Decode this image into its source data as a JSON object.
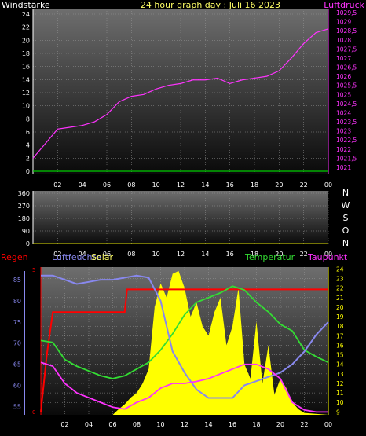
{
  "header": {
    "left_label": "Windstärke",
    "center_label": "24 hour graph day : Juli 16 2023",
    "right_label": "Luftdruck"
  },
  "labels": {
    "regen": "Regen",
    "luftfeuchte": "Luftfeuchte",
    "solar": "Solar",
    "temperatur": "Temperatur",
    "taupunkt": "Taupunkt"
  },
  "colors": {
    "pressure": "#ff33ff",
    "wind": "#00cc00",
    "humidity": "#8888ee",
    "temperature": "#33dd33",
    "dewpoint": "#ff33ff",
    "rain": "#ff0000",
    "solar": "#ffff00",
    "header_center": "#ffff66"
  },
  "chart_data": [
    {
      "type": "line",
      "panel": "wind-pressure",
      "x_ticks": [
        "02",
        "04",
        "06",
        "08",
        "10",
        "12",
        "14",
        "16",
        "18",
        "20",
        "22",
        "00"
      ],
      "y_left_ticks": [
        "0",
        "2",
        "4",
        "6",
        "8",
        "10",
        "12",
        "14",
        "16",
        "18",
        "20",
        "22",
        "24"
      ],
      "y_left_range": [
        0,
        24
      ],
      "y_right_ticks": [
        "1021",
        "1021,5",
        "1022",
        "1022,5",
        "1023",
        "1023,5",
        "1024",
        "1024,5",
        "1025",
        "1025,5",
        "1026",
        "1026,5",
        "1027",
        "1027,5",
        "1028",
        "1028,5",
        "1029",
        "1029,5"
      ],
      "y_right_range": [
        1021,
        1029.5
      ],
      "series": [
        {
          "name": "Luftdruck",
          "axis": "right",
          "x": [
            0,
            0.5,
            1,
            1.5,
            2,
            3,
            4,
            5,
            6,
            7,
            8,
            9,
            10,
            11,
            12,
            13,
            14,
            15,
            16,
            17,
            18,
            19,
            20,
            21,
            22,
            23,
            24
          ],
          "y": [
            1021.5,
            1021.9,
            1022.3,
            1022.7,
            1023.1,
            1023.2,
            1023.3,
            1023.5,
            1023.9,
            1024.6,
            1024.9,
            1025.0,
            1025.3,
            1025.5,
            1025.6,
            1025.8,
            1025.8,
            1025.9,
            1025.6,
            1025.8,
            1025.9,
            1026.0,
            1026.3,
            1027.0,
            1027.8,
            1028.4,
            1028.6
          ]
        },
        {
          "name": "Windstärke",
          "axis": "left",
          "x": [
            0,
            24
          ],
          "y": [
            0,
            0
          ]
        }
      ]
    },
    {
      "type": "line",
      "panel": "wind-direction",
      "x_ticks": [
        "02",
        "04",
        "06",
        "08",
        "10",
        "12",
        "14",
        "16",
        "18",
        "20",
        "22",
        "00"
      ],
      "y_left_ticks": [
        "0",
        "90",
        "180",
        "270",
        "360"
      ],
      "y_left_range": [
        0,
        360
      ],
      "y_right_ticks": [
        "N",
        "W",
        "S",
        "O",
        "N"
      ],
      "series": []
    },
    {
      "type": "line",
      "panel": "weather",
      "x_ticks": [
        "02",
        "04",
        "06",
        "08",
        "10",
        "12",
        "14",
        "16",
        "18",
        "20",
        "22",
        "00"
      ],
      "y_humidity_ticks": [
        "55",
        "60",
        "65",
        "70",
        "75",
        "80",
        "85"
      ],
      "y_humidity_range": [
        53,
        88
      ],
      "y_temp_ticks": [
        "9",
        "10",
        "11",
        "12",
        "13",
        "14",
        "15",
        "16",
        "17",
        "18",
        "19",
        "20",
        "21",
        "22",
        "23",
        "24"
      ],
      "y_temp_range": [
        8.7,
        24.2
      ],
      "y_rain_ticks": [
        "0",
        "5"
      ],
      "series": [
        {
          "name": "Temperatur",
          "axis": "temp",
          "x": [
            0,
            1,
            2,
            3,
            4,
            5,
            6,
            7,
            8,
            9,
            10,
            11,
            12,
            13,
            14,
            15,
            16,
            17,
            18,
            19,
            20,
            21,
            22,
            23,
            24
          ],
          "y": [
            16.5,
            16.3,
            14.5,
            13.8,
            13.3,
            12.8,
            12.5,
            12.8,
            13.5,
            14.2,
            15.5,
            17.2,
            19.2,
            20.5,
            21.0,
            21.5,
            22.2,
            21.8,
            20.5,
            19.5,
            18.2,
            17.5,
            15.5,
            14.8,
            14.2
          ]
        },
        {
          "name": "Luftfeuchte",
          "axis": "humidity",
          "x": [
            0,
            1,
            2,
            3,
            4,
            5,
            6,
            7,
            8,
            9,
            10,
            11,
            12,
            13,
            14,
            15,
            16,
            17,
            18,
            19,
            20,
            21,
            22,
            23,
            24
          ],
          "y": [
            86,
            86,
            85,
            84,
            84.5,
            85,
            85,
            85.5,
            86,
            85.5,
            80,
            68,
            63,
            59,
            57,
            57,
            57,
            60,
            61,
            62,
            63,
            65,
            68,
            72,
            75
          ]
        },
        {
          "name": "Taupunkt",
          "axis": "temp",
          "x": [
            0,
            1,
            2,
            3,
            4,
            5,
            6,
            7,
            8,
            9,
            10,
            11,
            12,
            13,
            14,
            15,
            16,
            17,
            18,
            19,
            20,
            21,
            22,
            23,
            24
          ],
          "y": [
            14.2,
            13.8,
            12.0,
            11.0,
            10.5,
            10.0,
            9.5,
            9.3,
            10.0,
            10.5,
            11.5,
            12.0,
            12.0,
            12.2,
            12.5,
            13.0,
            13.5,
            14.0,
            14.0,
            13.5,
            12.5,
            10.0,
            9.2,
            9.0,
            9.0
          ]
        },
        {
          "name": "Regen",
          "axis": "rain",
          "x": [
            0,
            0.5,
            1,
            3,
            5,
            7,
            7.2,
            14,
            20,
            23,
            23.5,
            24
          ],
          "y": [
            0,
            2,
            3.5,
            3.5,
            3.5,
            3.5,
            4.3,
            4.3,
            4.3,
            4.3,
            4.3,
            4.3
          ]
        },
        {
          "name": "Solar",
          "axis": "temp",
          "x": [
            0,
            6,
            6.5,
            7,
            7.5,
            8,
            8.5,
            9,
            9.5,
            10,
            10.5,
            11,
            11.5,
            12,
            12.5,
            13,
            13.5,
            14,
            14.5,
            15,
            15.5,
            16,
            16.5,
            17,
            17.5,
            18,
            18.5,
            19,
            19.5,
            20,
            20.5,
            21,
            21.5,
            22,
            24
          ],
          "y": [
            8.7,
            8.7,
            9.3,
            9.8,
            10.5,
            11.0,
            12.0,
            13.5,
            20.0,
            22.5,
            21.0,
            23.5,
            23.8,
            22.0,
            19.0,
            20.5,
            18.0,
            17.0,
            19.5,
            21.0,
            16.0,
            18.0,
            22.0,
            14.0,
            12.5,
            18.5,
            12.0,
            16.0,
            10.8,
            12.5,
            11.5,
            10.0,
            9.3,
            8.9,
            8.7
          ]
        }
      ]
    }
  ]
}
